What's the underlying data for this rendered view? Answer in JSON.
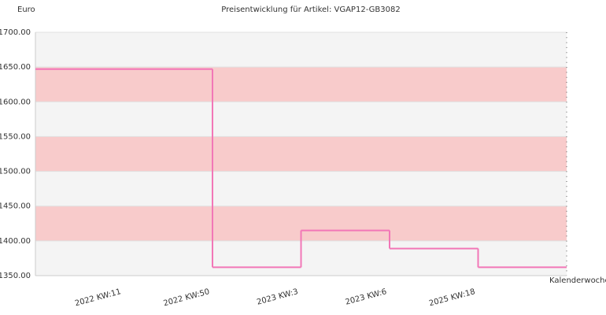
{
  "chart_data": {
    "type": "step",
    "title": "Preisentwicklung für Artikel: VGAP12-GB3082",
    "y_label": "Euro",
    "x_label": "Kalenderwoche",
    "categories": [
      null,
      "2022 KW:11",
      "2022 KW:50",
      "2023 KW:3",
      "2023 KW:6",
      "2025 KW:18"
    ],
    "values": [
      1647,
      1647,
      1362,
      1415,
      1389,
      1362
    ],
    "color": "#f277b7",
    "band_colors": [
      "#f4f4f4",
      "#f8cbcb"
    ],
    "ylim": [
      1350,
      1700
    ],
    "yticks": [
      {
        "value": 1350,
        "label": "1350.00"
      },
      {
        "value": 1400,
        "label": "1400.00"
      },
      {
        "value": 1450,
        "label": "1450.00"
      },
      {
        "value": 1500,
        "label": "1500.00"
      },
      {
        "value": 1550,
        "label": "1550.00"
      },
      {
        "value": 1600,
        "label": "1600.00"
      },
      {
        "value": 1650,
        "label": "1650.00"
      },
      {
        "value": 1700,
        "label": "1700.00"
      }
    ]
  }
}
